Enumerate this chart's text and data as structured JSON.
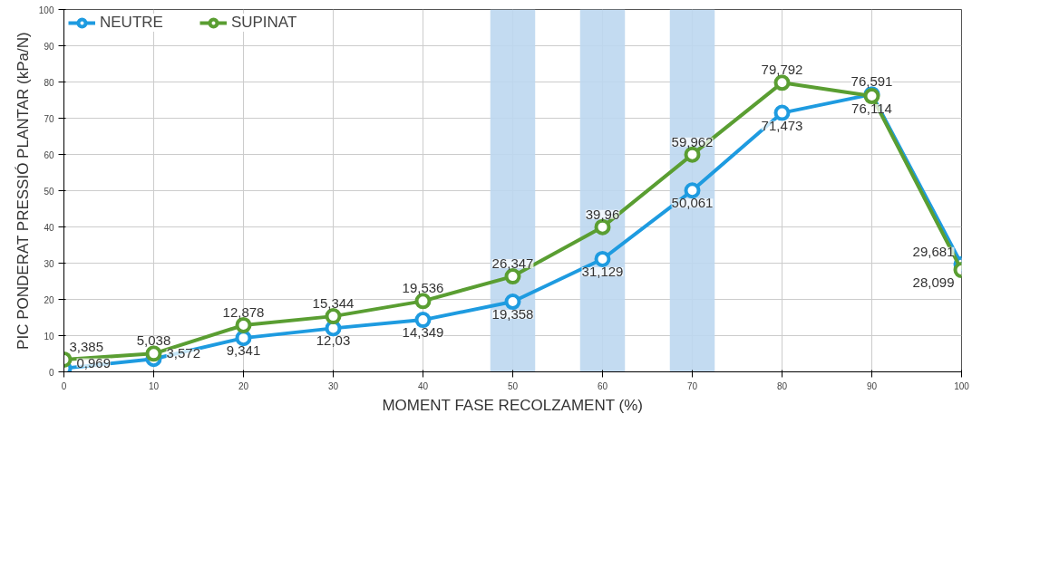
{
  "chart_data": {
    "type": "line",
    "xlabel": "MOMENT FASE RECOLZAMENT (%)",
    "ylabel": "PIC PONDERAT PRESSIÓ PLANTAR (kPa/N)",
    "x": [
      0,
      10,
      20,
      30,
      40,
      50,
      60,
      70,
      80,
      90,
      100
    ],
    "series": [
      {
        "name": "NEUTRE",
        "color": "#1e9be0",
        "values": [
          0.969,
          3.572,
          9.341,
          12.03,
          14.349,
          19.358,
          31.129,
          50.061,
          71.473,
          76.591,
          29.681
        ],
        "value_labels": [
          "0,969",
          "3,572",
          "9,341",
          "12,03",
          "14,349",
          "19,358",
          "31,129",
          "50,061",
          "71,473",
          "76,591",
          "29,681"
        ]
      },
      {
        "name": "SUPINAT",
        "color": "#5a9e32",
        "values": [
          3.385,
          5.038,
          12.878,
          15.344,
          19.536,
          26.347,
          39.96,
          59.962,
          79.792,
          76.114,
          28.099
        ],
        "value_labels": [
          "3,385",
          "5,038",
          "12,878",
          "15,344",
          "19,536",
          "26,347",
          "39,96",
          "59,962",
          "79,792",
          "76,114",
          "28,099"
        ]
      }
    ],
    "xlim": [
      0,
      100
    ],
    "xticks": [
      0,
      10,
      20,
      30,
      40,
      50,
      60,
      70,
      80,
      90,
      100
    ],
    "ylim": [
      0,
      100
    ],
    "yticks": [
      0,
      10,
      20,
      30,
      40,
      50,
      60,
      70,
      80,
      90,
      100
    ],
    "bands": [
      {
        "axis": "x",
        "from": 47.5,
        "to": 52.5,
        "color": "#bcd7ef"
      },
      {
        "axis": "x",
        "from": 57.5,
        "to": 62.5,
        "color": "#bcd7ef"
      },
      {
        "axis": "x",
        "from": 67.5,
        "to": 72.5,
        "color": "#bcd7ef"
      }
    ],
    "grid": true,
    "legend": "top left",
    "marker": "circle",
    "line_style": "solid"
  }
}
